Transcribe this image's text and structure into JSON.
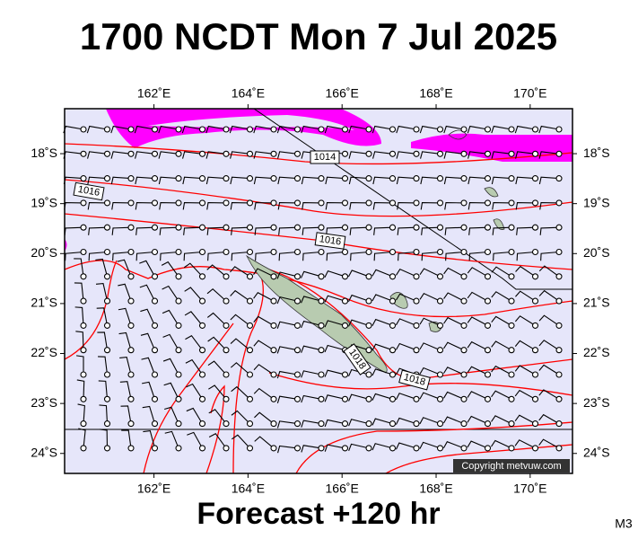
{
  "header": {
    "title": "1700 NCDT Mon 7 Jul 2025"
  },
  "map": {
    "lon_range": [
      160.1,
      170.9
    ],
    "lat_range": [
      17.1,
      24.4
    ],
    "lon_ticks": [
      {
        "value": 162,
        "label": "162˚E"
      },
      {
        "value": 164,
        "label": "164˚E"
      },
      {
        "value": 166,
        "label": "166˚E"
      },
      {
        "value": 168,
        "label": "168˚E"
      },
      {
        "value": 170,
        "label": "170˚E"
      }
    ],
    "lat_ticks": [
      {
        "value": 18,
        "label": "18˚S"
      },
      {
        "value": 19,
        "label": "19˚S"
      },
      {
        "value": 20,
        "label": "20˚S"
      },
      {
        "value": 21,
        "label": "21˚S"
      },
      {
        "value": 22,
        "label": "22˚S"
      },
      {
        "value": 23,
        "label": "23˚S"
      },
      {
        "value": 24,
        "label": "24˚S"
      }
    ],
    "isobar_labels": [
      "1014",
      "1016",
      "1016",
      "1018",
      "1018"
    ],
    "copyright": "Copyright metvuw.com"
  },
  "footer": {
    "text": "Forecast +120 hr",
    "code": "M3"
  }
}
